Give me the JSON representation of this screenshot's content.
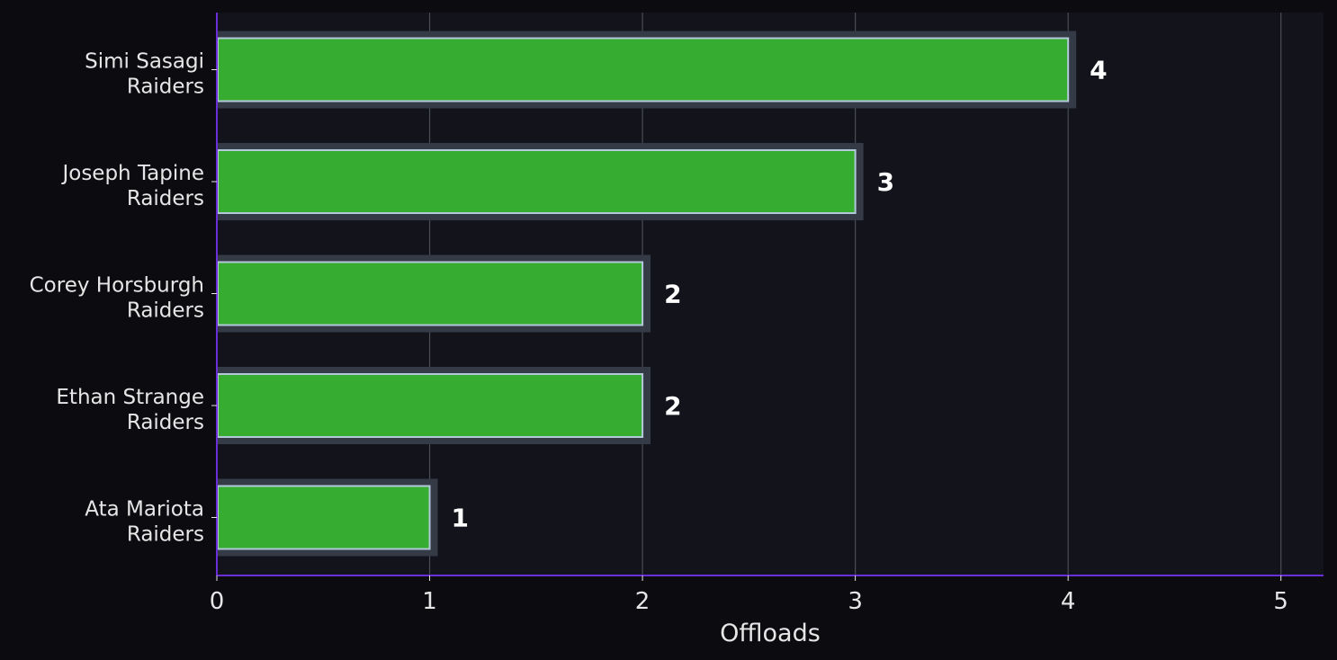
{
  "chart_data": {
    "type": "bar",
    "orientation": "horizontal",
    "categories": [
      {
        "name": "Simi Sasagi",
        "team": "Raiders"
      },
      {
        "name": "Joseph Tapine",
        "team": "Raiders"
      },
      {
        "name": "Corey Horsburgh",
        "team": "Raiders"
      },
      {
        "name": "Ethan Strange",
        "team": "Raiders"
      },
      {
        "name": "Ata Mariota",
        "team": "Raiders"
      }
    ],
    "values": [
      4,
      3,
      2,
      2,
      1
    ],
    "value_labels": [
      "4",
      "3",
      "2",
      "2",
      "1"
    ],
    "xlabel": "Offloads",
    "xlim": [
      0,
      5.2
    ],
    "xticks": [
      0,
      1,
      2,
      3,
      4,
      5
    ],
    "xtick_labels": [
      "0",
      "1",
      "2",
      "3",
      "4",
      "5"
    ],
    "grid": "vertical",
    "legend": "none",
    "colors": {
      "bar": "#36ac31",
      "bar_edge": "#b3c8d8",
      "bar_shadow": "#343b47",
      "plot_background": "#12131b",
      "page_background": "#0b0b10",
      "axis": "#6a2fd8",
      "grid": "#4a4d55",
      "text": "#e6e6e6",
      "value_text": "#ffffff"
    }
  }
}
